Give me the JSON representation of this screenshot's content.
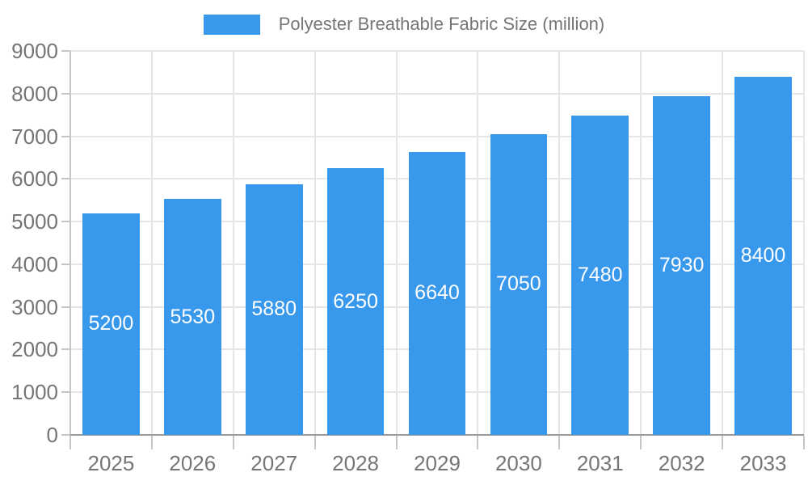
{
  "chart_data": {
    "type": "bar",
    "title": "",
    "legend_label": "Polyester Breathable Fabric Size (million)",
    "legend_position": "top",
    "categories": [
      "2025",
      "2026",
      "2027",
      "2028",
      "2029",
      "2030",
      "2031",
      "2032",
      "2033"
    ],
    "values": [
      5200,
      5530,
      5880,
      6250,
      6640,
      7050,
      7480,
      7930,
      8400
    ],
    "series": [
      {
        "name": "Polyester Breathable Fabric Size (million)",
        "values": [
          5200,
          5530,
          5880,
          6250,
          6640,
          7050,
          7480,
          7930,
          8400
        ]
      }
    ],
    "xlabel": "",
    "ylabel": "",
    "ylim": [
      0,
      9000
    ],
    "ytick_step": 1000,
    "yticks": [
      0,
      1000,
      2000,
      3000,
      4000,
      5000,
      6000,
      7000,
      8000,
      9000
    ],
    "grid": true,
    "bar_labels_shown": true,
    "style": {
      "bar_color": "#3898EC",
      "bar_label_color": "#ffffff",
      "axis_text_color": "#757575",
      "gridline_color": "#e6e6e6",
      "xaxis_line_color": "#999999",
      "yaxis_line_color": "#c6c6c6",
      "tick_color": "#c6c6c6",
      "background_color": "#ffffff"
    }
  }
}
